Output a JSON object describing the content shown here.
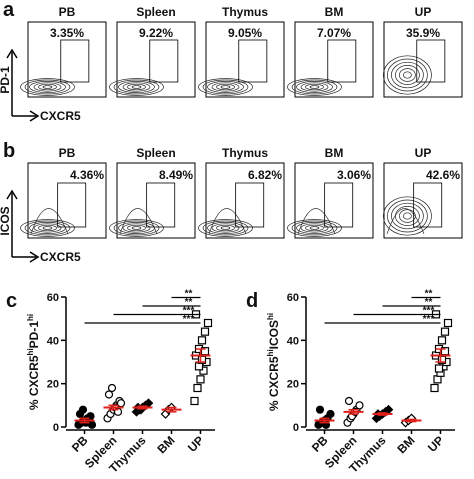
{
  "flow_panels": [
    {
      "letter": "a",
      "y_axis": "PD-1",
      "x_axis": "CXCR5",
      "plots": [
        {
          "title": "PB",
          "percent": "3.35%"
        },
        {
          "title": "Spleen",
          "percent": "9.22%"
        },
        {
          "title": "Thymus",
          "percent": "9.05%"
        },
        {
          "title": "BM",
          "percent": "7.07%"
        },
        {
          "title": "UP",
          "percent": "35.9%"
        }
      ]
    },
    {
      "letter": "b",
      "y_axis": "ICOS",
      "x_axis": "CXCR5",
      "plots": [
        {
          "title": "PB",
          "percent": "4.36%"
        },
        {
          "title": "Spleen",
          "percent": "8.49%"
        },
        {
          "title": "Thymus",
          "percent": "6.82%"
        },
        {
          "title": "BM",
          "percent": "3.06%"
        },
        {
          "title": "UP",
          "percent": "42.6%"
        }
      ]
    }
  ],
  "chart_data": [
    {
      "type": "strip",
      "letter": "c",
      "ylabel": [
        "% CXCR5",
        "hi",
        "PD-1",
        "hi"
      ],
      "categories": [
        "PB",
        "Spleen",
        "Thymus",
        "BM",
        "UP"
      ],
      "markers": [
        "circle-filled",
        "circle",
        "diamond-filled",
        "diamond",
        "square"
      ],
      "groups": [
        [
          1,
          2,
          3,
          4,
          5,
          6,
          8,
          2,
          3,
          1
        ],
        [
          4,
          6,
          8,
          10,
          12,
          15,
          18,
          9,
          7,
          11
        ],
        [
          7,
          8,
          9,
          10,
          11,
          9,
          8
        ],
        [
          6,
          8,
          9
        ],
        [
          12,
          18,
          22,
          26,
          30,
          33,
          36,
          40,
          44,
          48,
          52,
          28,
          31,
          35
        ]
      ],
      "means": [
        3,
        9,
        9,
        8,
        33
      ],
      "sems": [
        1,
        1,
        0.6,
        1,
        3
      ],
      "mean_color": "#e0201b",
      "comparisons": [
        "***",
        "***",
        "**",
        "**"
      ],
      "ylim": [
        0,
        60
      ],
      "yticks": [
        0,
        20,
        40,
        60
      ]
    },
    {
      "type": "strip",
      "letter": "d",
      "ylabel": [
        "% CXCR5",
        "hi",
        "ICOS",
        "hi"
      ],
      "categories": [
        "PB",
        "Spleen",
        "Thymus",
        "BM",
        "UP"
      ],
      "markers": [
        "circle-filled",
        "circle",
        "diamond-filled",
        "diamond",
        "square"
      ],
      "groups": [
        [
          1,
          2,
          3,
          4,
          6,
          8,
          2,
          1
        ],
        [
          2,
          4,
          6,
          8,
          10,
          12,
          5,
          7
        ],
        [
          4,
          5,
          6,
          7,
          8,
          6
        ],
        [
          2,
          3,
          4
        ],
        [
          18,
          22,
          25,
          28,
          30,
          33,
          36,
          40,
          44,
          48,
          52,
          27,
          31,
          35
        ]
      ],
      "means": [
        3,
        7,
        6,
        3,
        33
      ],
      "sems": [
        1,
        1,
        0.5,
        0.5,
        3
      ],
      "mean_color": "#e0201b",
      "comparisons": [
        "***",
        "***",
        "**",
        "**"
      ],
      "ylim": [
        0,
        60
      ],
      "yticks": [
        0,
        20,
        40,
        60
      ]
    }
  ]
}
